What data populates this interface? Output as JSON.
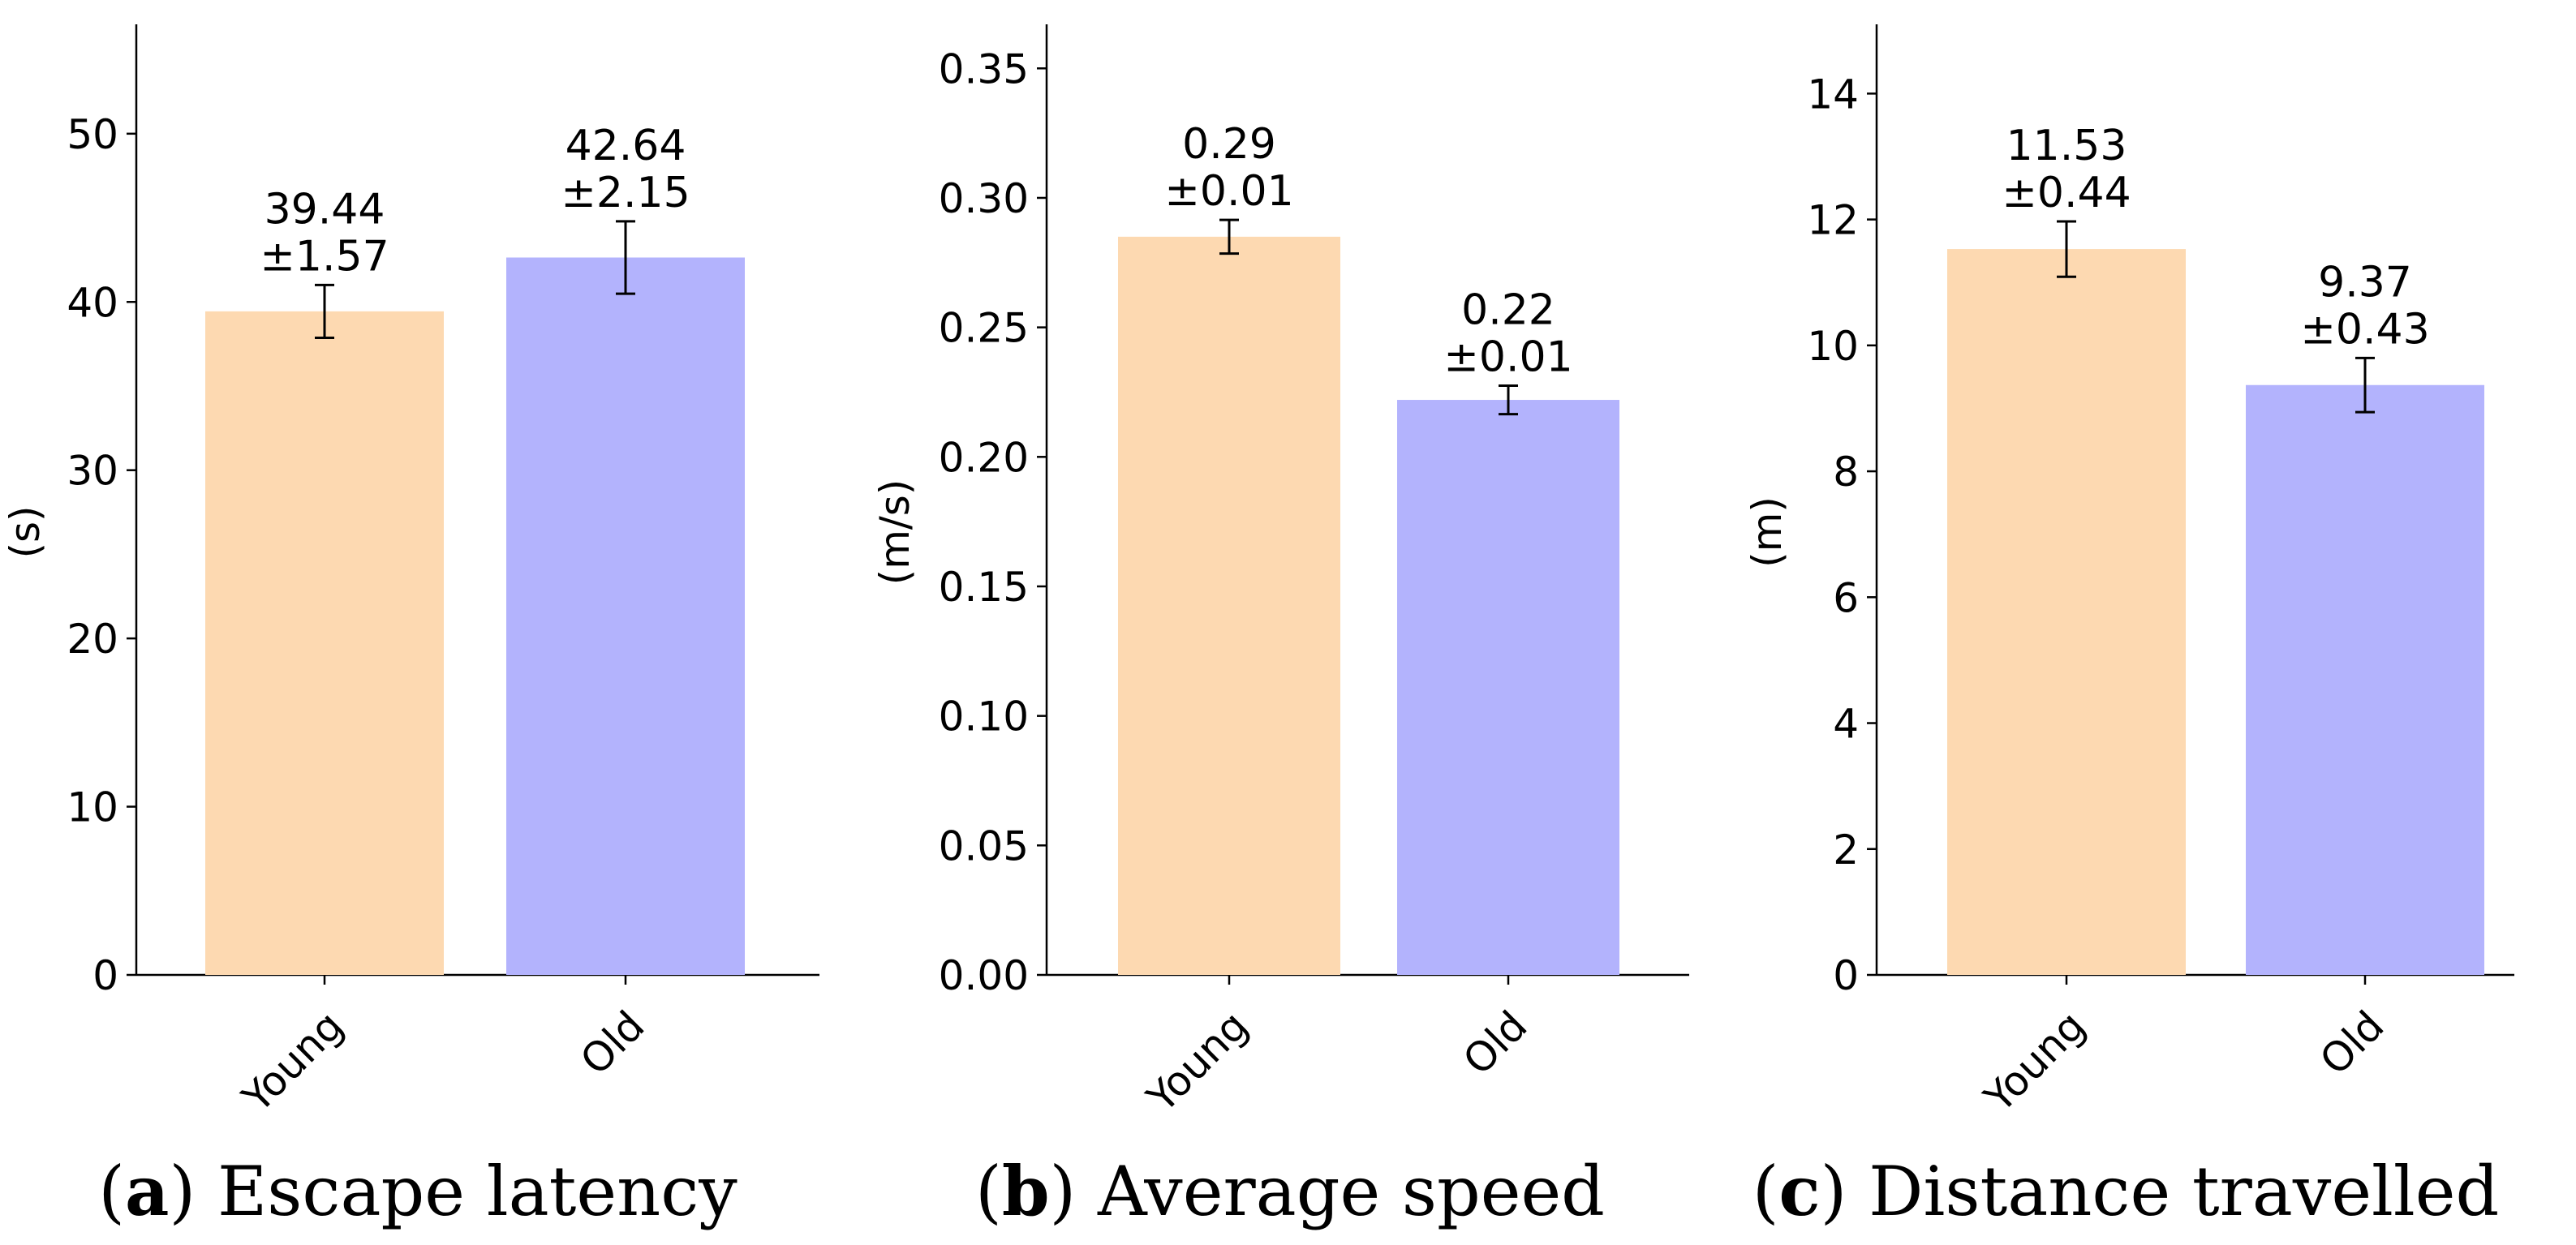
{
  "chart_data": [
    {
      "type": "bar",
      "id": "a",
      "categories": [
        "Young",
        "Old"
      ],
      "values": [
        39.44,
        42.64
      ],
      "errors": [
        1.57,
        2.15
      ],
      "bar_labels": [
        "39.44\n±1.57",
        "42.64\n±2.15"
      ],
      "colors": [
        "#fdd9b1",
        "#b3b3fd"
      ],
      "ylabel": "(s)",
      "ylim": [
        0,
        56.5
      ],
      "yticks": [
        0,
        10,
        20,
        30,
        40,
        50
      ],
      "ytick_labels": [
        "0",
        "10",
        "20",
        "30",
        "40",
        "50"
      ],
      "caption_letter": "a",
      "caption_text": "Escape latency"
    },
    {
      "type": "bar",
      "id": "b",
      "categories": [
        "Young",
        "Old"
      ],
      "values": [
        0.285,
        0.222
      ],
      "errors": [
        0.0065,
        0.0055
      ],
      "bar_labels": [
        "0.29\n±0.01",
        "0.22\n±0.01"
      ],
      "colors": [
        "#fdd9b1",
        "#b3b3fd"
      ],
      "ylabel": "(m/s)",
      "ylim": [
        0,
        0.367
      ],
      "yticks": [
        0,
        0.05,
        0.1,
        0.15,
        0.2,
        0.25,
        0.3,
        0.35
      ],
      "ytick_labels": [
        "0.00",
        "0.05",
        "0.10",
        "0.15",
        "0.20",
        "0.25",
        "0.30",
        "0.35"
      ],
      "caption_letter": "b",
      "caption_text": "Average speed"
    },
    {
      "type": "bar",
      "id": "c",
      "categories": [
        "Young",
        "Old"
      ],
      "values": [
        11.53,
        9.37
      ],
      "errors": [
        0.44,
        0.43
      ],
      "bar_labels": [
        "11.53\n±0.44",
        "9.37\n±0.43"
      ],
      "colors": [
        "#fdd9b1",
        "#b3b3fd"
      ],
      "ylabel": "(m)",
      "ylim": [
        0,
        15.1
      ],
      "yticks": [
        0,
        2,
        4,
        6,
        8,
        10,
        12,
        14
      ],
      "ytick_labels": [
        "0",
        "2",
        "4",
        "6",
        "8",
        "10",
        "12",
        "14"
      ],
      "caption_letter": "c",
      "caption_text": "Distance travelled"
    }
  ]
}
